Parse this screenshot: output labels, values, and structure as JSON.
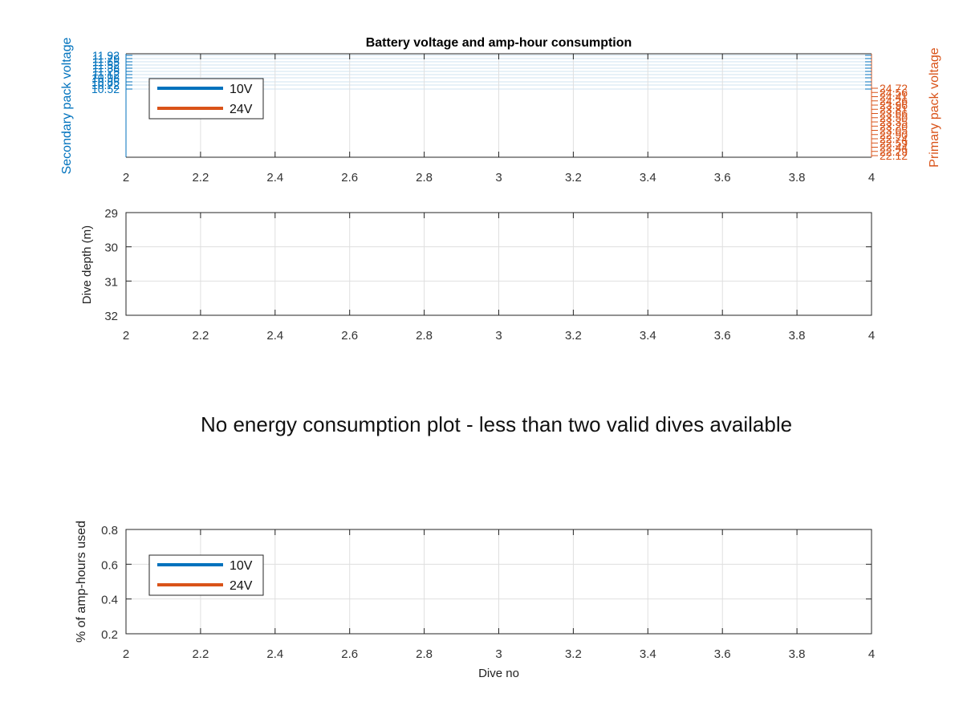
{
  "figure": {
    "notice": "No energy consumption plot - less than two valid dives available"
  },
  "colors": {
    "series_10v": "#0072BD",
    "series_24v": "#D95319",
    "axis": "#262626",
    "grid": "#DFDFDF"
  },
  "chart_data": [
    {
      "type": "line",
      "title": "Battery voltage and amp-hour consumption",
      "xlim": [
        2,
        4
      ],
      "x_ticks": [
        "2",
        "2.2",
        "2.4",
        "2.6",
        "2.8",
        "3",
        "3.2",
        "3.4",
        "3.6",
        "3.8",
        "4"
      ],
      "y_left": {
        "label": "Secondary pack voltage",
        "ticks": [
          "11.92",
          "11.79",
          "11.65",
          "11.52",
          "11.38",
          "11.25",
          "11.12",
          "10.98",
          "10.85",
          "10.72",
          "10.52"
        ]
      },
      "y_right": {
        "label": "Primary pack voltage",
        "ticks": [
          "24.72",
          "24.56",
          "24.41",
          "24.26",
          "23.96",
          "23.81",
          "23.66",
          "23.50",
          "23.35",
          "23.20",
          "23.05",
          "22.90",
          "22.74",
          "22.59",
          "22.44",
          "22.29",
          "22.12"
        ]
      },
      "grid": true,
      "legend": {
        "position": "top-left",
        "entries": [
          "10V",
          "24V"
        ]
      },
      "series": [
        {
          "name": "10V",
          "values": []
        },
        {
          "name": "24V",
          "values": []
        }
      ]
    },
    {
      "type": "line",
      "xlim": [
        2,
        4
      ],
      "ylim": [
        29,
        32
      ],
      "y_reversed": true,
      "ylabel": "Dive depth (m)",
      "x_ticks": [
        "2",
        "2.2",
        "2.4",
        "2.6",
        "2.8",
        "3",
        "3.2",
        "3.4",
        "3.6",
        "3.8",
        "4"
      ],
      "y_ticks": [
        "29",
        "30",
        "31",
        "32"
      ],
      "grid": true,
      "series": []
    },
    {
      "type": "line",
      "xlim": [
        2,
        4
      ],
      "ylim": [
        0.2,
        0.8
      ],
      "xlabel": "Dive no",
      "ylabel": "% of amp-hours used",
      "x_ticks": [
        "2",
        "2.2",
        "2.4",
        "2.6",
        "2.8",
        "3",
        "3.2",
        "3.4",
        "3.6",
        "3.8",
        "4"
      ],
      "y_ticks": [
        "0.8",
        "0.6",
        "0.4",
        "0.2"
      ],
      "grid": true,
      "legend": {
        "position": "top-left",
        "entries": [
          "10V",
          "24V"
        ]
      },
      "series": [
        {
          "name": "10V",
          "values": []
        },
        {
          "name": "24V",
          "values": []
        }
      ]
    }
  ]
}
